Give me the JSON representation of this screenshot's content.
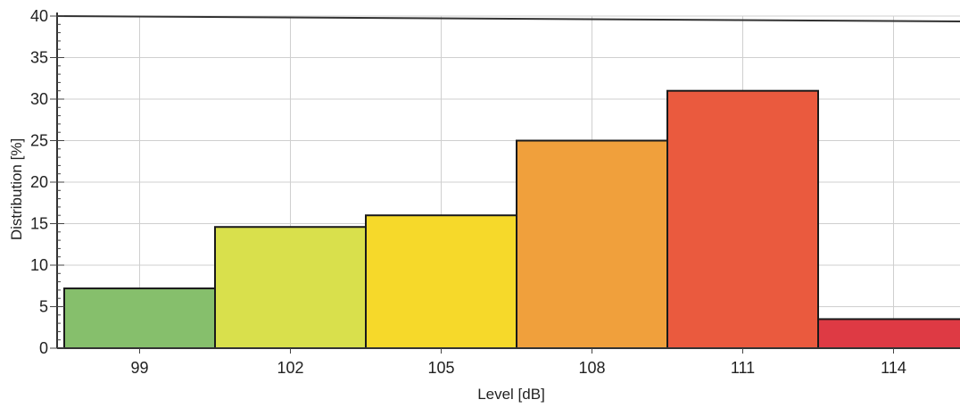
{
  "chart_data": {
    "type": "bar",
    "title": "",
    "xlabel": "Level [dB]",
    "ylabel": "Distribution [%]",
    "categories": [
      "99",
      "102",
      "105",
      "108",
      "111",
      "114"
    ],
    "values": [
      7.2,
      14.6,
      16.0,
      25.0,
      31.0,
      3.5
    ],
    "colors": [
      "#86bf6c",
      "#d9e04c",
      "#f6d92a",
      "#f0a03c",
      "#ea5a3e",
      "#de3a44"
    ],
    "ylim": [
      0,
      40
    ],
    "yticks": [
      0,
      5,
      10,
      15,
      20,
      25,
      30,
      35,
      40
    ],
    "grid": true,
    "legend": "none"
  }
}
